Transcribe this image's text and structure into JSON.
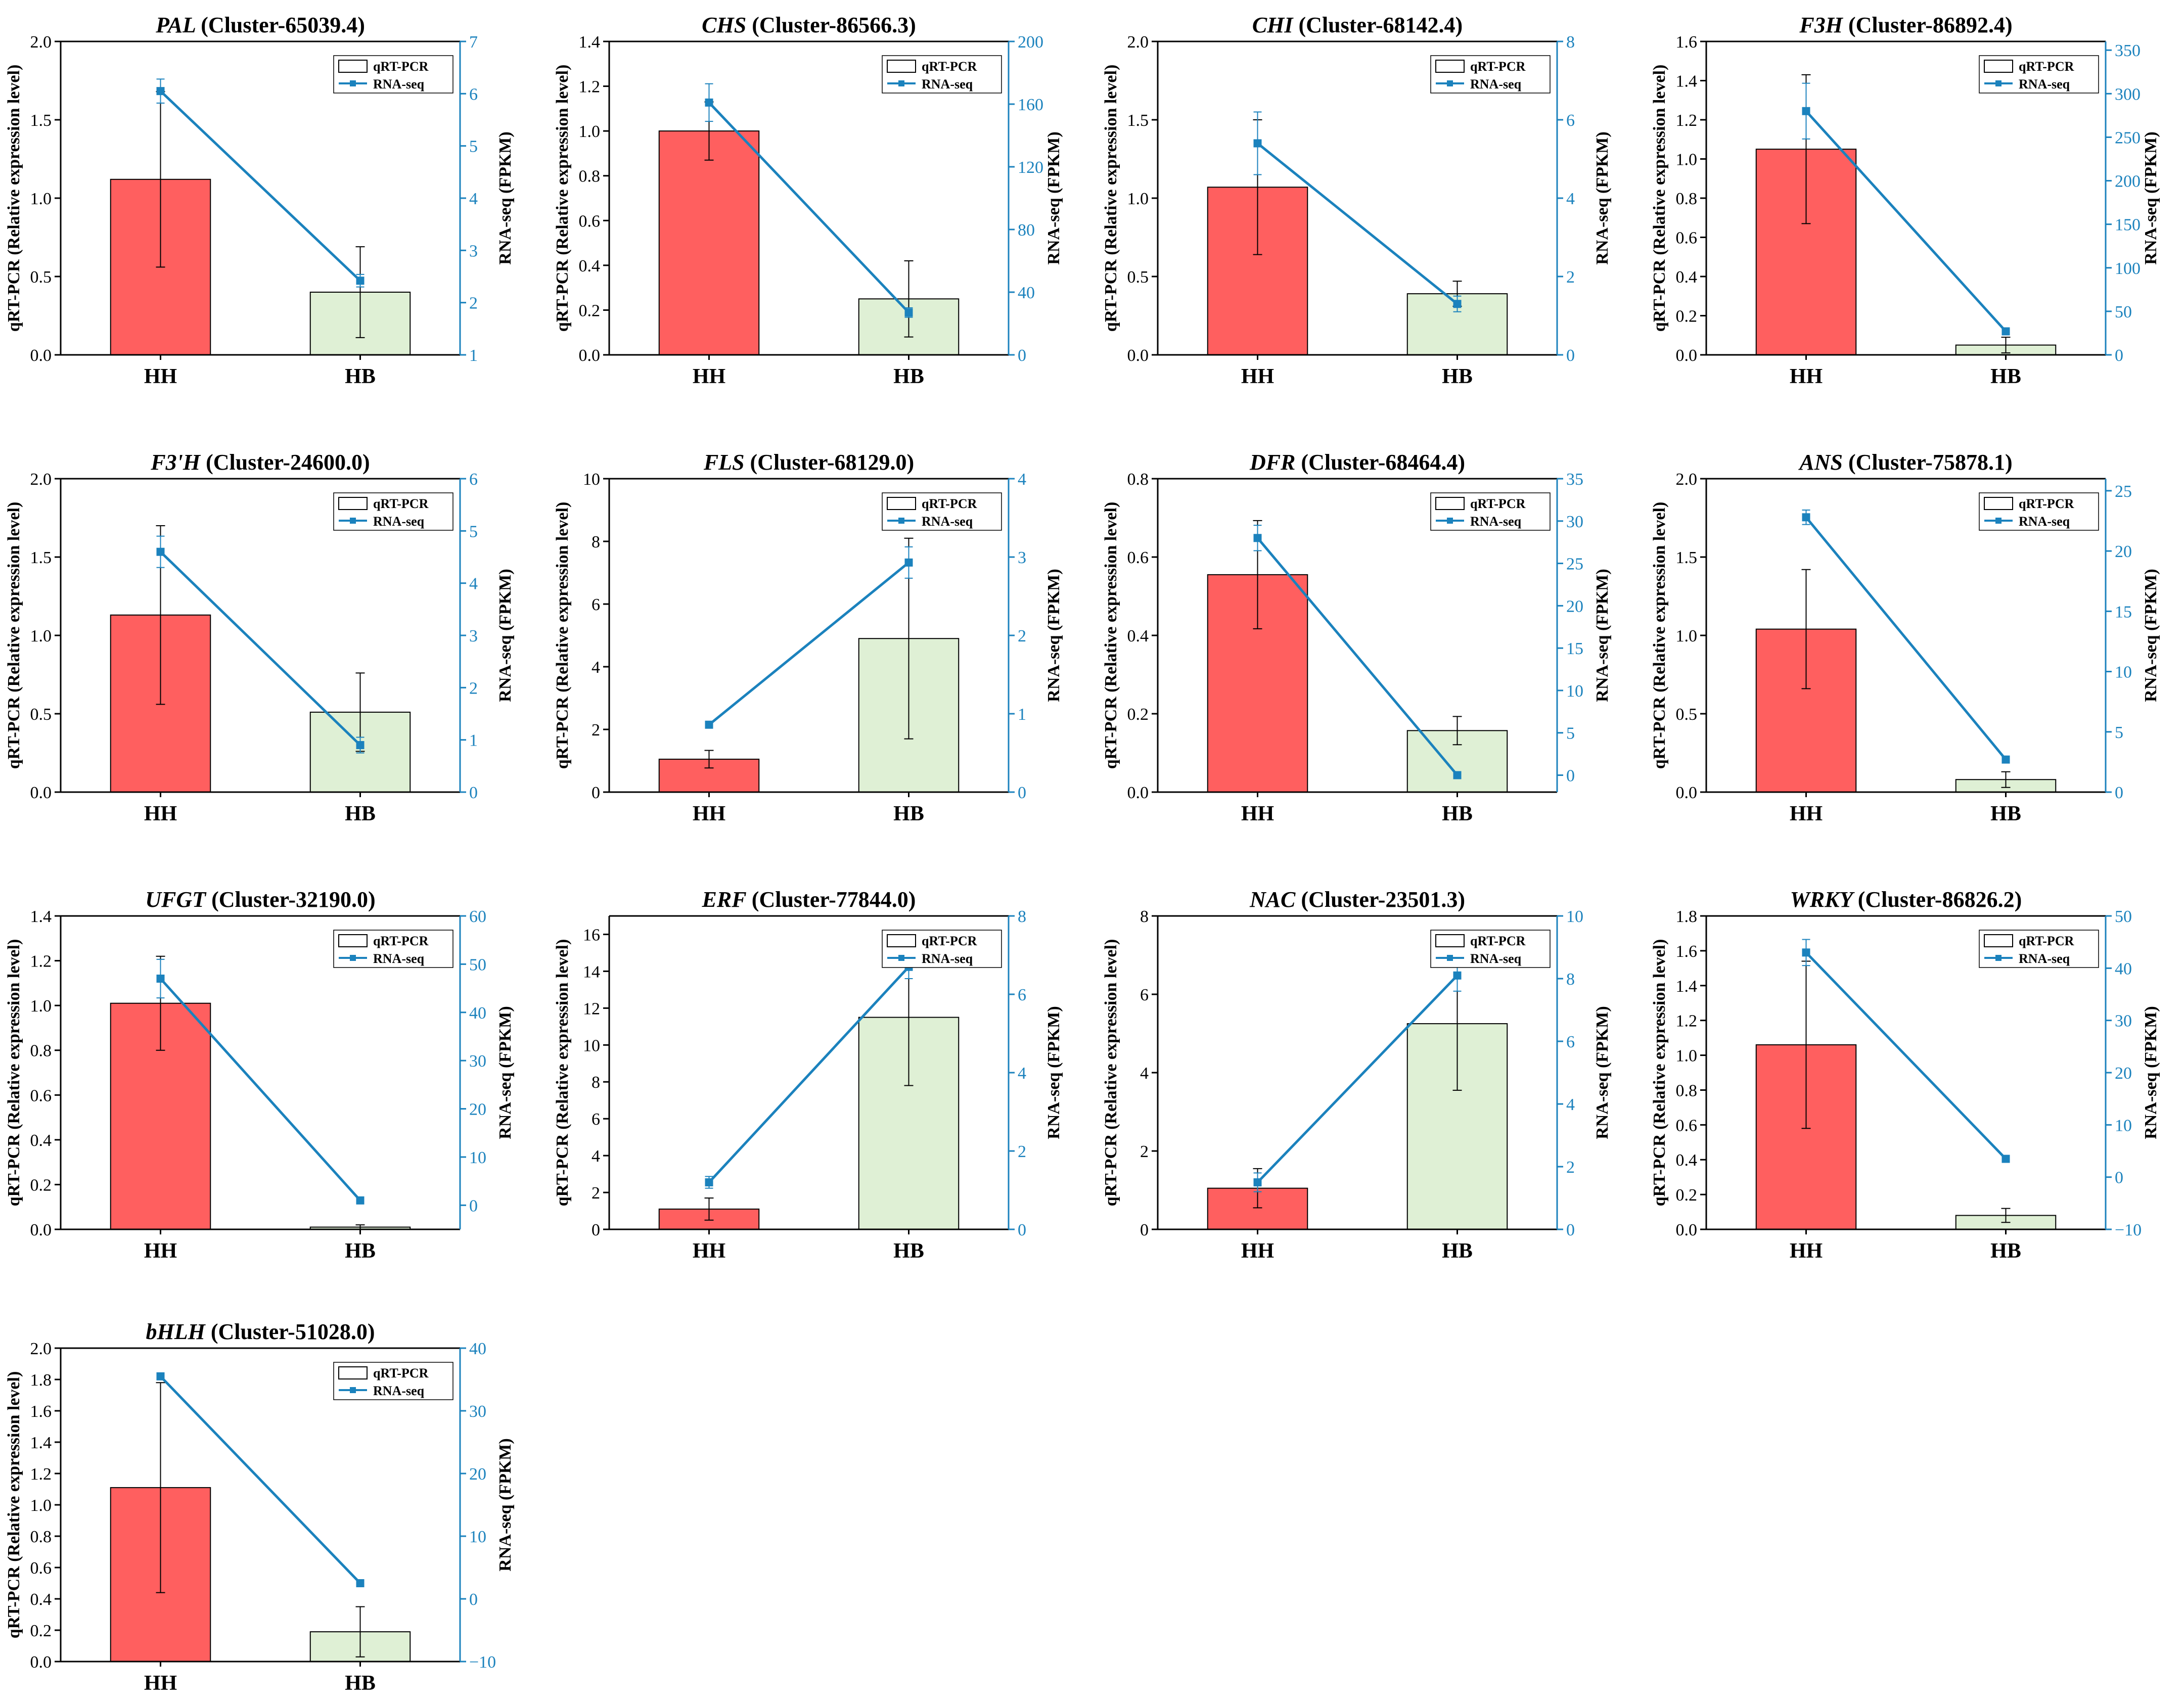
{
  "colors": {
    "hh_bar": "#ff5f5f",
    "hb_bar": "#dff0d5",
    "rna_line": "#1b82bd",
    "axis": "#000000"
  },
  "labels": {
    "left_axis": "qRT-PCR (Relative expression level)",
    "right_axis": "RNA-seq (FPKM)",
    "legend_bar": "qRT-PCR",
    "legend_line": "RNA-seq"
  },
  "chart_data": [
    {
      "type": "bar",
      "gene": "PAL",
      "cluster": "(Cluster-65039.4)",
      "title": "PAL (Cluster-65039.4)",
      "categories": [
        "HH",
        "HB"
      ],
      "series": [
        {
          "name": "qRT-PCR",
          "values": [
            1.12,
            0.4
          ],
          "errors": [
            0.56,
            0.29
          ]
        },
        {
          "name": "RNA-seq",
          "values": [
            6.05,
            2.42
          ],
          "errors": [
            0.23,
            0.12
          ]
        }
      ],
      "left_axis": {
        "min": 0,
        "max": 2.0,
        "ticks": [
          "0.0",
          "0.5",
          "1.0",
          "1.5",
          "2.0"
        ]
      },
      "right_axis": {
        "min": 1,
        "max": 7,
        "ticks": [
          "1",
          "2",
          "3",
          "4",
          "5",
          "6",
          "7"
        ]
      }
    },
    {
      "type": "bar",
      "gene": "CHS",
      "cluster": "(Cluster-86566.3)",
      "title": "CHS (Cluster-86566.3)",
      "categories": [
        "HH",
        "HB"
      ],
      "series": [
        {
          "name": "qRT-PCR",
          "values": [
            1.0,
            0.25
          ],
          "errors": [
            0.13,
            0.17
          ]
        },
        {
          "name": "RNA-seq",
          "values": [
            161,
            27
          ],
          "errors": [
            12,
            3
          ]
        }
      ],
      "left_axis": {
        "min": 0,
        "max": 1.4,
        "ticks": [
          "0.0",
          "0.2",
          "0.4",
          "0.6",
          "0.8",
          "1.0",
          "1.2",
          "1.4"
        ]
      },
      "right_axis": {
        "min": 0,
        "max": 200,
        "ticks": [
          "0",
          "40",
          "80",
          "120",
          "160",
          "200"
        ]
      }
    },
    {
      "type": "bar",
      "gene": "CHI",
      "cluster": "(Cluster-68142.4)",
      "title": "CHI (Cluster-68142.4)",
      "categories": [
        "HH",
        "HB"
      ],
      "series": [
        {
          "name": "qRT-PCR",
          "values": [
            1.07,
            0.39
          ],
          "errors": [
            0.43,
            0.08
          ]
        },
        {
          "name": "RNA-seq",
          "values": [
            5.4,
            1.3
          ],
          "errors": [
            0.8,
            0.2
          ]
        }
      ],
      "left_axis": {
        "min": 0,
        "max": 2.0,
        "ticks": [
          "0.0",
          "0.5",
          "1.0",
          "1.5",
          "2.0"
        ]
      },
      "right_axis": {
        "min": 0,
        "max": 8,
        "ticks": [
          "0",
          "2",
          "4",
          "6",
          "8"
        ]
      }
    },
    {
      "type": "bar",
      "gene": "F3H",
      "cluster": "(Cluster-86892.4)",
      "title": "F3H (Cluster-86892.4)",
      "categories": [
        "HH",
        "HB"
      ],
      "series": [
        {
          "name": "qRT-PCR",
          "values": [
            1.05,
            0.05
          ],
          "errors": [
            0.38,
            0.04
          ]
        },
        {
          "name": "RNA-seq",
          "values": [
            280,
            27
          ],
          "errors": [
            32,
            2
          ]
        }
      ],
      "left_axis": {
        "min": 0,
        "max": 1.6,
        "ticks": [
          "0.0",
          "0.2",
          "0.4",
          "0.6",
          "0.8",
          "1.0",
          "1.2",
          "1.4",
          "1.6"
        ]
      },
      "right_axis": {
        "min": 0,
        "max": 360,
        "ticks": [
          "0",
          "50",
          "100",
          "150",
          "200",
          "250",
          "300",
          "350"
        ]
      }
    },
    {
      "type": "bar",
      "gene": "F3'H",
      "cluster": "(Cluster-24600.0)",
      "title": "F3'H (Cluster-24600.0)",
      "categories": [
        "HH",
        "HB"
      ],
      "series": [
        {
          "name": "qRT-PCR",
          "values": [
            1.13,
            0.51
          ],
          "errors": [
            0.57,
            0.25
          ]
        },
        {
          "name": "RNA-seq",
          "values": [
            4.6,
            0.9
          ],
          "errors": [
            0.3,
            0.15
          ]
        }
      ],
      "left_axis": {
        "min": 0,
        "max": 2.0,
        "ticks": [
          "0.0",
          "0.5",
          "1.0",
          "1.5",
          "2.0"
        ]
      },
      "right_axis": {
        "min": 0,
        "max": 6,
        "ticks": [
          "0",
          "1",
          "2",
          "3",
          "4",
          "5",
          "6"
        ]
      }
    },
    {
      "type": "bar",
      "gene": "FLS",
      "cluster": "(Cluster-68129.0)",
      "title": "FLS (Cluster-68129.0)",
      "categories": [
        "HH",
        "HB"
      ],
      "series": [
        {
          "name": "qRT-PCR",
          "values": [
            1.05,
            4.9
          ],
          "errors": [
            0.28,
            3.2
          ]
        },
        {
          "name": "RNA-seq",
          "values": [
            0.86,
            2.93
          ],
          "errors": [
            0.04,
            0.2
          ]
        }
      ],
      "left_axis": {
        "min": 0,
        "max": 10,
        "ticks": [
          "0",
          "2",
          "4",
          "6",
          "8",
          "10"
        ]
      },
      "right_axis": {
        "min": 0,
        "max": 4,
        "ticks": [
          "0",
          "1",
          "2",
          "3",
          "4"
        ]
      }
    },
    {
      "type": "bar",
      "gene": "DFR",
      "cluster": "(Cluster-68464.4)",
      "title": "DFR (Cluster-68464.4)",
      "categories": [
        "HH",
        "HB"
      ],
      "series": [
        {
          "name": "qRT-PCR",
          "values": [
            0.555,
            0.157
          ],
          "errors": [
            0.138,
            0.036
          ]
        },
        {
          "name": "RNA-seq",
          "values": [
            28,
            0
          ],
          "errors": [
            1.5,
            0.3
          ]
        }
      ],
      "left_axis": {
        "min": 0,
        "max": 0.8,
        "ticks": [
          "0.0",
          "0.2",
          "0.4",
          "0.6",
          "0.8"
        ]
      },
      "right_axis": {
        "min": -2,
        "max": 35,
        "ticks": [
          "0",
          "5",
          "10",
          "15",
          "20",
          "25",
          "30",
          "35"
        ]
      }
    },
    {
      "type": "bar",
      "gene": "ANS",
      "cluster": "(Cluster-75878.1)",
      "title": "ANS (Cluster-75878.1)",
      "categories": [
        "HH",
        "HB"
      ],
      "series": [
        {
          "name": "qRT-PCR",
          "values": [
            1.04,
            0.08
          ],
          "errors": [
            0.38,
            0.05
          ]
        },
        {
          "name": "RNA-seq",
          "values": [
            22.8,
            2.7
          ],
          "errors": [
            0.6,
            0.1
          ]
        }
      ],
      "left_axis": {
        "min": 0,
        "max": 2.0,
        "ticks": [
          "0.0",
          "0.5",
          "1.0",
          "1.5",
          "2.0"
        ]
      },
      "right_axis": {
        "min": 0,
        "max": 26,
        "ticks": [
          "0",
          "5",
          "10",
          "15",
          "20",
          "25"
        ]
      }
    },
    {
      "type": "bar",
      "gene": "UFGT",
      "cluster": "(Cluster-32190.0)",
      "title": "UFGT (Cluster-32190.0)",
      "categories": [
        "HH",
        "HB"
      ],
      "series": [
        {
          "name": "qRT-PCR",
          "values": [
            1.01,
            0.01
          ],
          "errors": [
            0.21,
            0.01
          ]
        },
        {
          "name": "RNA-seq",
          "values": [
            47,
            1
          ],
          "errors": [
            4,
            0.3
          ]
        }
      ],
      "left_axis": {
        "min": 0,
        "max": 1.4,
        "ticks": [
          "0.0",
          "0.2",
          "0.4",
          "0.6",
          "0.8",
          "1.0",
          "1.2",
          "1.4"
        ]
      },
      "right_axis": {
        "min": -5,
        "max": 60,
        "ticks": [
          "0",
          "10",
          "20",
          "30",
          "40",
          "50",
          "60"
        ]
      }
    },
    {
      "type": "bar",
      "gene": "ERF",
      "cluster": "(Cluster-77844.0)",
      "title": "ERF (Cluster-77844.0)",
      "categories": [
        "HH",
        "HB"
      ],
      "series": [
        {
          "name": "qRT-PCR",
          "values": [
            1.1,
            11.5
          ],
          "errors": [
            0.6,
            3.7
          ]
        },
        {
          "name": "RNA-seq",
          "values": [
            1.2,
            6.7
          ],
          "errors": [
            0.15,
            0.3
          ]
        }
      ],
      "left_axis": {
        "min": 0,
        "max": 17,
        "ticks": [
          "0",
          "2",
          "4",
          "6",
          "8",
          "10",
          "12",
          "14",
          "16"
        ]
      },
      "right_axis": {
        "min": 0,
        "max": 8,
        "ticks": [
          "0",
          "2",
          "4",
          "6",
          "8"
        ]
      }
    },
    {
      "type": "bar",
      "gene": "NAC",
      "cluster": "(Cluster-23501.3)",
      "title": "NAC (Cluster-23501.3)",
      "categories": [
        "HH",
        "HB"
      ],
      "series": [
        {
          "name": "qRT-PCR",
          "values": [
            1.05,
            5.25
          ],
          "errors": [
            0.5,
            1.7
          ]
        },
        {
          "name": "RNA-seq",
          "values": [
            1.5,
            8.1
          ],
          "errors": [
            0.3,
            0.5
          ]
        }
      ],
      "left_axis": {
        "min": 0,
        "max": 8,
        "ticks": [
          "0",
          "2",
          "4",
          "6",
          "8"
        ]
      },
      "right_axis": {
        "min": 0,
        "max": 10,
        "ticks": [
          "0",
          "2",
          "4",
          "6",
          "8",
          "10"
        ]
      }
    },
    {
      "type": "bar",
      "gene": "WRKY",
      "cluster": "(Cluster-86826.2)",
      "title": "WRKY (Cluster-86826.2)",
      "categories": [
        "HH",
        "HB"
      ],
      "series": [
        {
          "name": "qRT-PCR",
          "values": [
            1.06,
            0.08
          ],
          "errors": [
            0.48,
            0.04
          ]
        },
        {
          "name": "RNA-seq",
          "values": [
            43,
            3.5
          ],
          "errors": [
            2.5,
            0.5
          ]
        }
      ],
      "left_axis": {
        "min": 0,
        "max": 1.8,
        "ticks": [
          "0.0",
          "0.2",
          "0.4",
          "0.6",
          "0.8",
          "1.0",
          "1.2",
          "1.4",
          "1.6",
          "1.8"
        ]
      },
      "right_axis": {
        "min": -10,
        "max": 50,
        "ticks": [
          "−10",
          "0",
          "10",
          "20",
          "30",
          "40",
          "50"
        ]
      }
    },
    {
      "type": "bar",
      "gene": "bHLH",
      "cluster": "(Cluster-51028.0)",
      "title": "bHLH (Cluster-51028.0)",
      "categories": [
        "HH",
        "HB"
      ],
      "series": [
        {
          "name": "qRT-PCR",
          "values": [
            1.11,
            0.19
          ],
          "errors": [
            0.67,
            0.16
          ]
        },
        {
          "name": "RNA-seq",
          "values": [
            35.5,
            2.5
          ],
          "errors": [
            0.4,
            0.3
          ]
        }
      ],
      "left_axis": {
        "min": 0,
        "max": 2.0,
        "ticks": [
          "0.0",
          "0.2",
          "0.4",
          "0.6",
          "0.8",
          "1.0",
          "1.2",
          "1.4",
          "1.6",
          "1.8",
          "2.0"
        ]
      },
      "right_axis": {
        "min": -10,
        "max": 40,
        "ticks": [
          "−10",
          "0",
          "10",
          "20",
          "30",
          "40"
        ]
      }
    }
  ]
}
